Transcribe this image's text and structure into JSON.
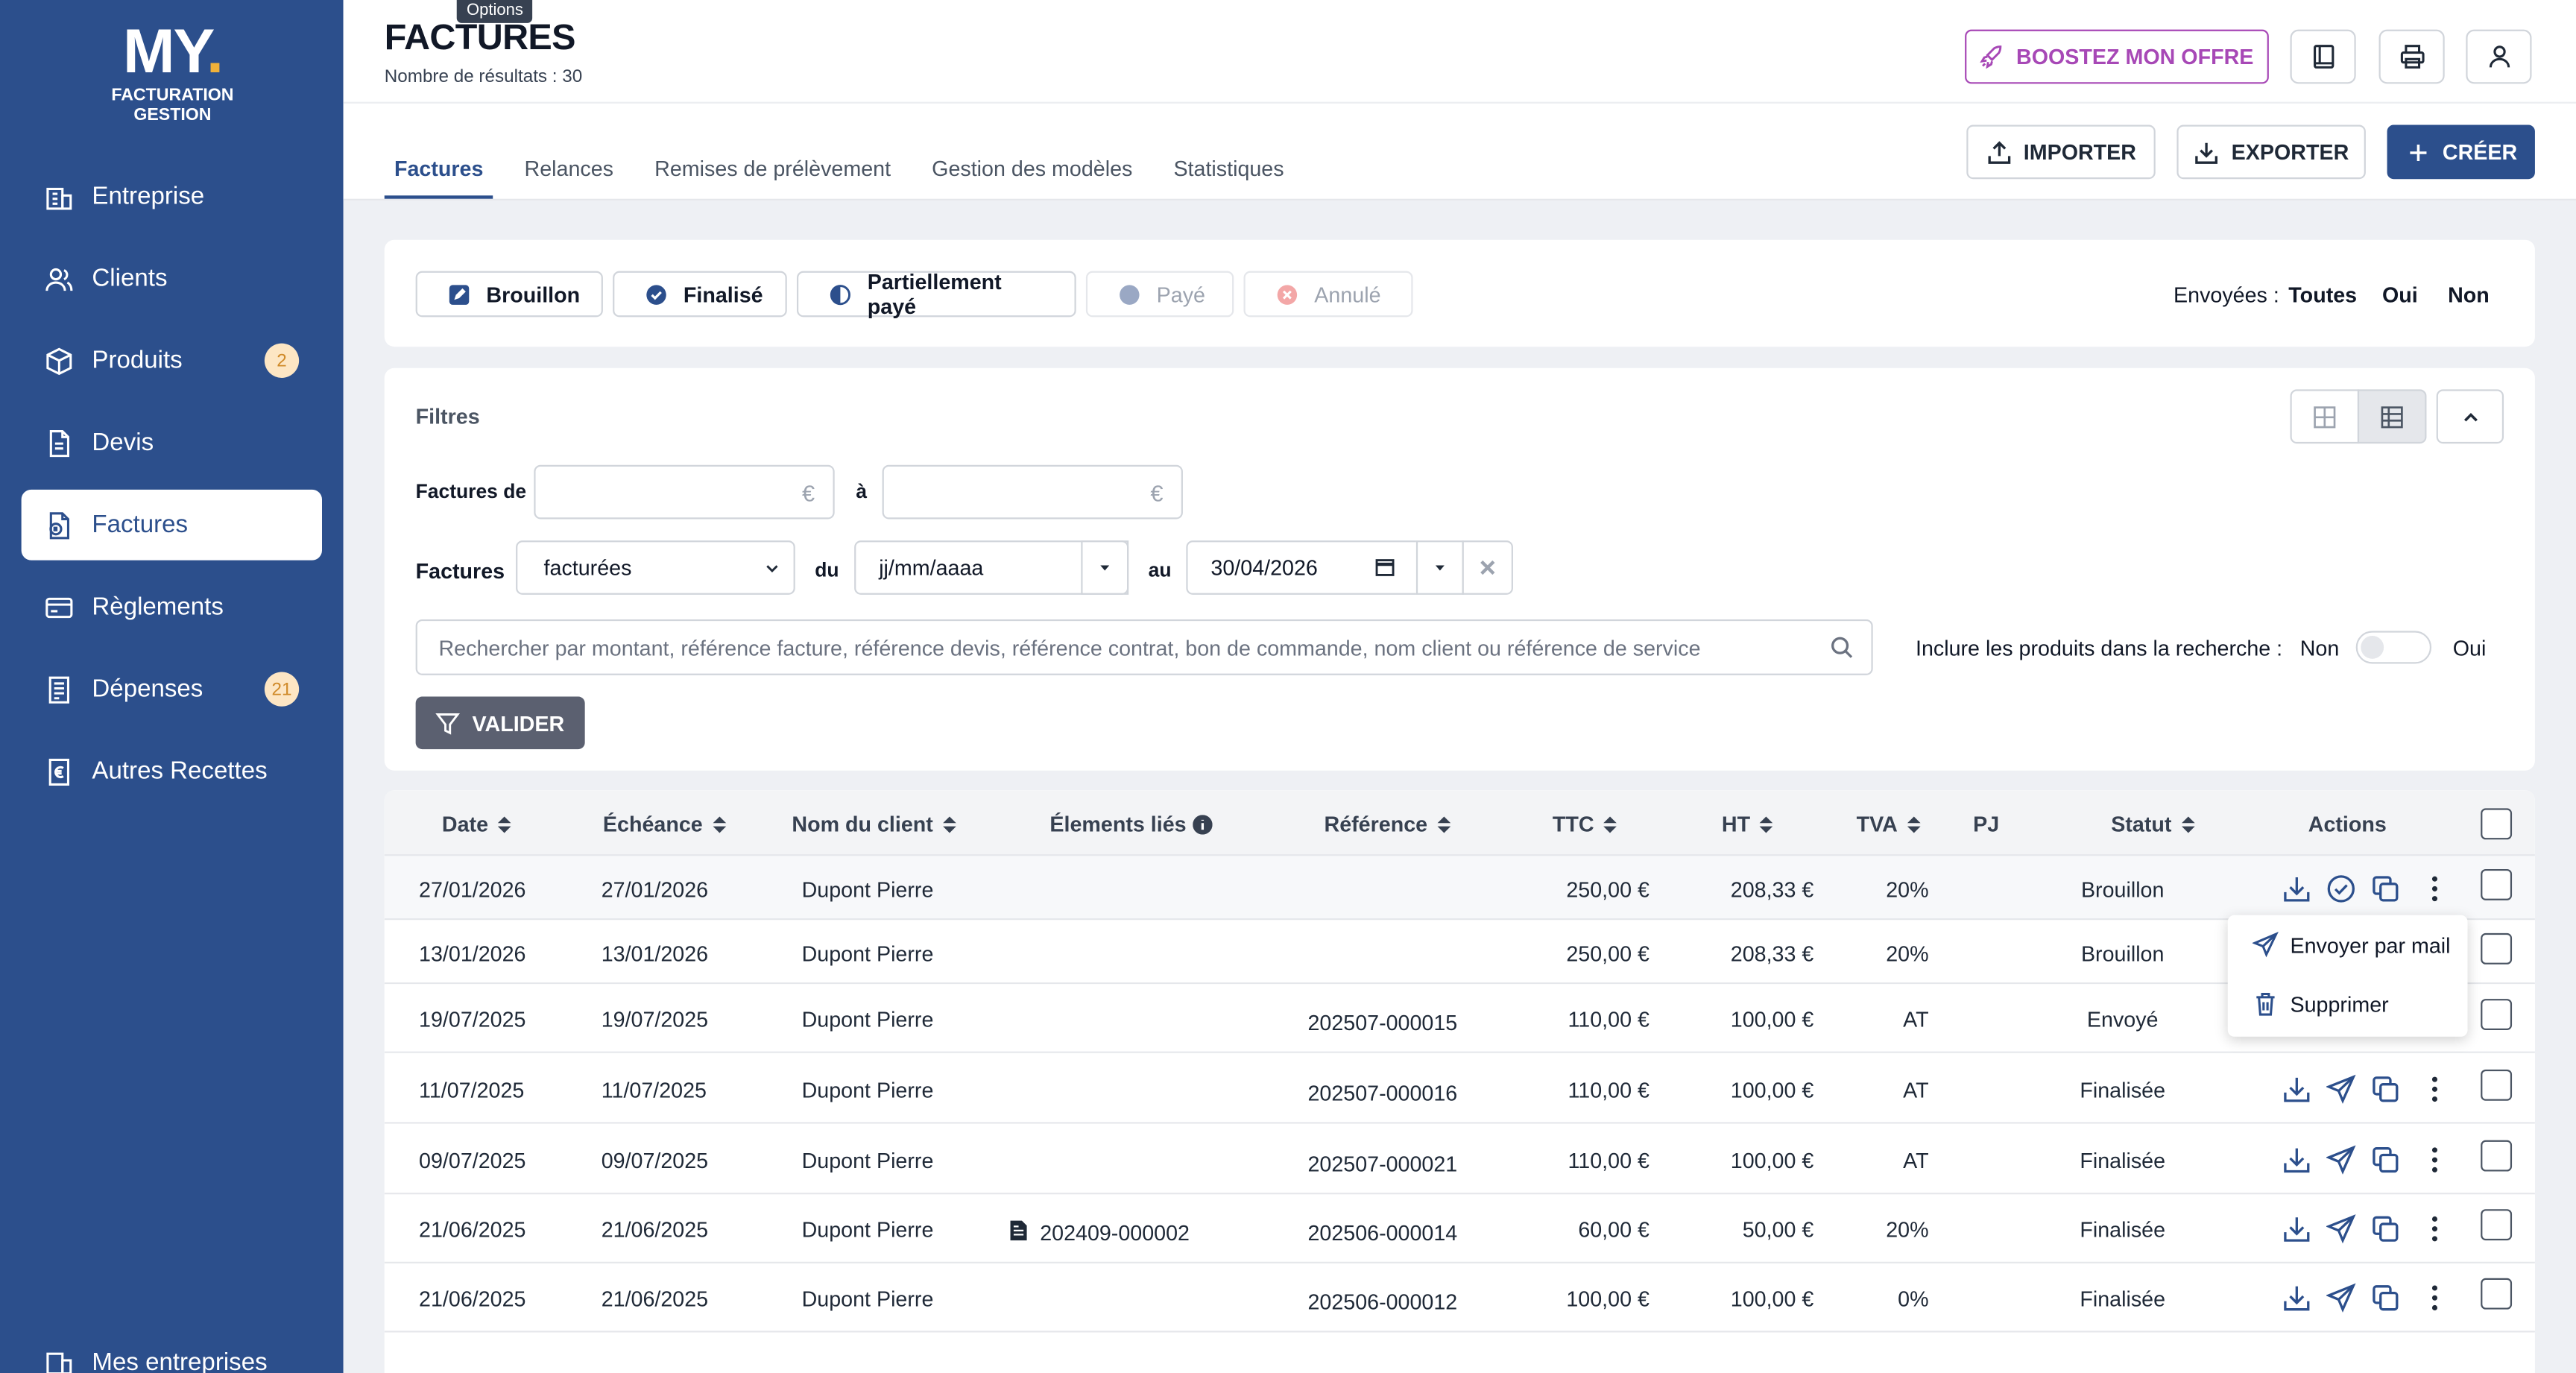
{
  "app": {
    "logo_mark": "MY",
    "logo_line1": "FACTURATION",
    "logo_line2": "GESTION"
  },
  "sidebar": {
    "items": [
      {
        "label": "Entreprise",
        "icon": "building-icon"
      },
      {
        "label": "Clients",
        "icon": "users-icon"
      },
      {
        "label": "Produits",
        "icon": "box-icon",
        "badge": "2"
      },
      {
        "label": "Devis",
        "icon": "document-icon"
      },
      {
        "label": "Factures",
        "icon": "invoice-icon",
        "active": true
      },
      {
        "label": "Règlements",
        "icon": "card-icon"
      },
      {
        "label": "Dépenses",
        "icon": "receipt-icon",
        "badge": "21"
      },
      {
        "label": "Autres Recettes",
        "icon": "euro-icon"
      }
    ],
    "bottom_label": "Mes entreprises"
  },
  "header": {
    "title": "FACTURES",
    "subtitle": "Nombre de résultats : 30",
    "tooltip": "Options",
    "boost_label": "BOOSTEZ MON OFFRE",
    "import_label": "IMPORTER",
    "export_label": "EXPORTER",
    "create_label": "CRÉER"
  },
  "tabs": [
    "Factures",
    "Relances",
    "Remises de prélèvement",
    "Gestion des modèles",
    "Statistiques"
  ],
  "status": {
    "chips": [
      "Brouillon",
      "Finalisé",
      "Partiellement payé",
      "Payé",
      "Annulé"
    ],
    "sent_label": "Envoyées :",
    "sent_options": [
      "Toutes",
      "Oui",
      "Non"
    ]
  },
  "filters": {
    "title": "Filtres",
    "amount_from_label": "Factures de",
    "amount_to_label": "à",
    "currency": "€",
    "invoices_label": "Factures",
    "invoices_select": "facturées",
    "du_label": "du",
    "du_value": "jj/mm/aaaa",
    "au_label": "au",
    "au_value": "30/04/2026",
    "search_placeholder": "Rechercher par montant, référence facture, référence devis, référence contrat, bon de commande, nom client ou référence de service",
    "include_label": "Inclure les produits dans la recherche :",
    "toggle_no": "Non",
    "toggle_yes": "Oui",
    "validate_label": "VALIDER"
  },
  "table": {
    "headers": [
      "Date",
      "Échéance",
      "Nom du client",
      "Élements liés",
      "Référence",
      "TTC",
      "HT",
      "TVA",
      "PJ",
      "Statut",
      "Actions"
    ],
    "rows": [
      {
        "date": "27/01/2026",
        "echeance": "27/01/2026",
        "client": "Dupont Pierre",
        "lies": "",
        "ref": "",
        "ttc": "250,00 €",
        "ht": "208,33 €",
        "tva": "20%",
        "statut": "Brouillon"
      },
      {
        "date": "13/01/2026",
        "echeance": "13/01/2026",
        "client": "Dupont Pierre",
        "lies": "",
        "ref": "",
        "ttc": "250,00 €",
        "ht": "208,33 €",
        "tva": "20%",
        "statut": "Brouillon"
      },
      {
        "date": "19/07/2025",
        "echeance": "19/07/2025",
        "client": "Dupont Pierre",
        "lies": "",
        "ref": "202507-000015",
        "ttc": "110,00 €",
        "ht": "100,00 €",
        "tva": "AT",
        "statut": "Envoyé"
      },
      {
        "date": "11/07/2025",
        "echeance": "11/07/2025",
        "client": "Dupont Pierre",
        "lies": "",
        "ref": "202507-000016",
        "ttc": "110,00 €",
        "ht": "100,00 €",
        "tva": "AT",
        "statut": "Finalisée"
      },
      {
        "date": "09/07/2025",
        "echeance": "09/07/2025",
        "client": "Dupont Pierre",
        "lies": "",
        "ref": "202507-000021",
        "ttc": "110,00 €",
        "ht": "100,00 €",
        "tva": "AT",
        "statut": "Finalisée"
      },
      {
        "date": "21/06/2025",
        "echeance": "21/06/2025",
        "client": "Dupont Pierre",
        "lies": "202409-000002",
        "ref": "202506-000014",
        "ttc": "60,00 €",
        "ht": "50,00 €",
        "tva": "20%",
        "statut": "Finalisée"
      },
      {
        "date": "21/06/2025",
        "echeance": "21/06/2025",
        "client": "Dupont Pierre",
        "lies": "",
        "ref": "202506-000012",
        "ttc": "100,00 €",
        "ht": "100,00 €",
        "tva": "0%",
        "statut": "Finalisée"
      }
    ]
  },
  "dropdown": {
    "items": [
      "Envoyer par mail",
      "Supprimer"
    ]
  },
  "colors": {
    "sidebar": "#2c4f8c",
    "primary": "#2c4f8c",
    "boost": "#a748b6",
    "badge_bg": "#fde6c4"
  }
}
